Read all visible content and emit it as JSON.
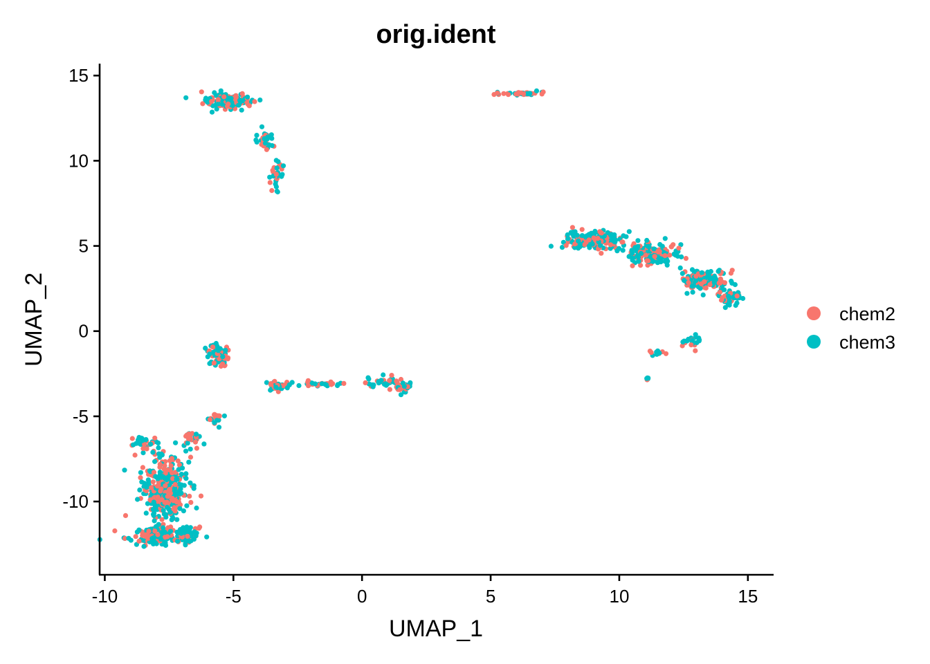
{
  "chart_data": {
    "type": "scatter",
    "title": "orig.ident",
    "xlabel": "UMAP_1",
    "ylabel": "UMAP_2",
    "xlim": [
      -10.2,
      16
    ],
    "ylim": [
      -14.3,
      15.7
    ],
    "x_ticks": [
      -10,
      -5,
      0,
      5,
      10,
      15
    ],
    "y_ticks": [
      -10,
      -5,
      0,
      5,
      10,
      15
    ],
    "x_tick_labels": [
      "-10",
      "-5",
      "0",
      "5",
      "10",
      "15"
    ],
    "y_tick_labels": [
      "-10",
      "-5",
      "0",
      "5",
      "10",
      "15"
    ],
    "grid": false,
    "legend_position": "right",
    "series": [
      {
        "name": "chem2",
        "color": "#F8766D"
      },
      {
        "name": "chem3",
        "color": "#00BFC4"
      }
    ],
    "clusters": [
      {
        "center": [
          -7.7,
          -9.3
        ],
        "spread": [
          0.8,
          1.8
        ],
        "count": 360,
        "note": "bottom-left large cluster"
      },
      {
        "center": [
          -8.2,
          -12.0
        ],
        "spread": [
          0.9,
          0.5
        ],
        "count": 120
      },
      {
        "center": [
          -6.8,
          -12.0
        ],
        "spread": [
          0.5,
          0.5
        ],
        "count": 60
      },
      {
        "center": [
          -8.5,
          -6.5
        ],
        "spread": [
          0.5,
          0.4
        ],
        "count": 30
      },
      {
        "center": [
          -6.6,
          -6.3
        ],
        "spread": [
          0.4,
          0.4
        ],
        "count": 30
      },
      {
        "center": [
          -5.6,
          -1.4
        ],
        "spread": [
          0.4,
          0.6
        ],
        "count": 70
      },
      {
        "center": [
          -5.7,
          -5.2
        ],
        "spread": [
          0.3,
          0.4
        ],
        "count": 20
      },
      {
        "center": [
          -3.2,
          -3.2
        ],
        "spread": [
          0.6,
          0.2
        ],
        "count": 40
      },
      {
        "center": [
          -1.5,
          -3.1
        ],
        "spread": [
          0.7,
          0.1
        ],
        "count": 30
      },
      {
        "center": [
          0.8,
          -3.0
        ],
        "spread": [
          0.6,
          0.3
        ],
        "count": 40
      },
      {
        "center": [
          1.6,
          -3.3
        ],
        "spread": [
          0.3,
          0.3
        ],
        "count": 30
      },
      {
        "center": [
          -5.2,
          13.5
        ],
        "spread": [
          0.9,
          0.4
        ],
        "count": 150
      },
      {
        "center": [
          -3.7,
          11.2
        ],
        "spread": [
          0.3,
          0.6
        ],
        "count": 30
      },
      {
        "center": [
          -3.3,
          9.3
        ],
        "spread": [
          0.2,
          0.8
        ],
        "count": 30
      },
      {
        "center": [
          6.2,
          13.95
        ],
        "spread": [
          0.8,
          0.08
        ],
        "count": 45
      },
      {
        "center": [
          9.0,
          5.3
        ],
        "spread": [
          1.0,
          0.5
        ],
        "count": 180
      },
      {
        "center": [
          11.3,
          4.5
        ],
        "spread": [
          0.9,
          0.6
        ],
        "count": 150
      },
      {
        "center": [
          13.3,
          3.0
        ],
        "spread": [
          0.8,
          0.6
        ],
        "count": 150
      },
      {
        "center": [
          14.3,
          2.0
        ],
        "spread": [
          0.4,
          0.4
        ],
        "count": 50
      },
      {
        "center": [
          12.8,
          -0.6
        ],
        "spread": [
          0.3,
          0.5
        ],
        "count": 20
      },
      {
        "center": [
          11.4,
          -1.3
        ],
        "spread": [
          0.4,
          0.15
        ],
        "count": 10
      },
      {
        "center": [
          11.1,
          -2.8
        ],
        "spread": [
          0.05,
          0.1
        ],
        "count": 5
      }
    ]
  }
}
